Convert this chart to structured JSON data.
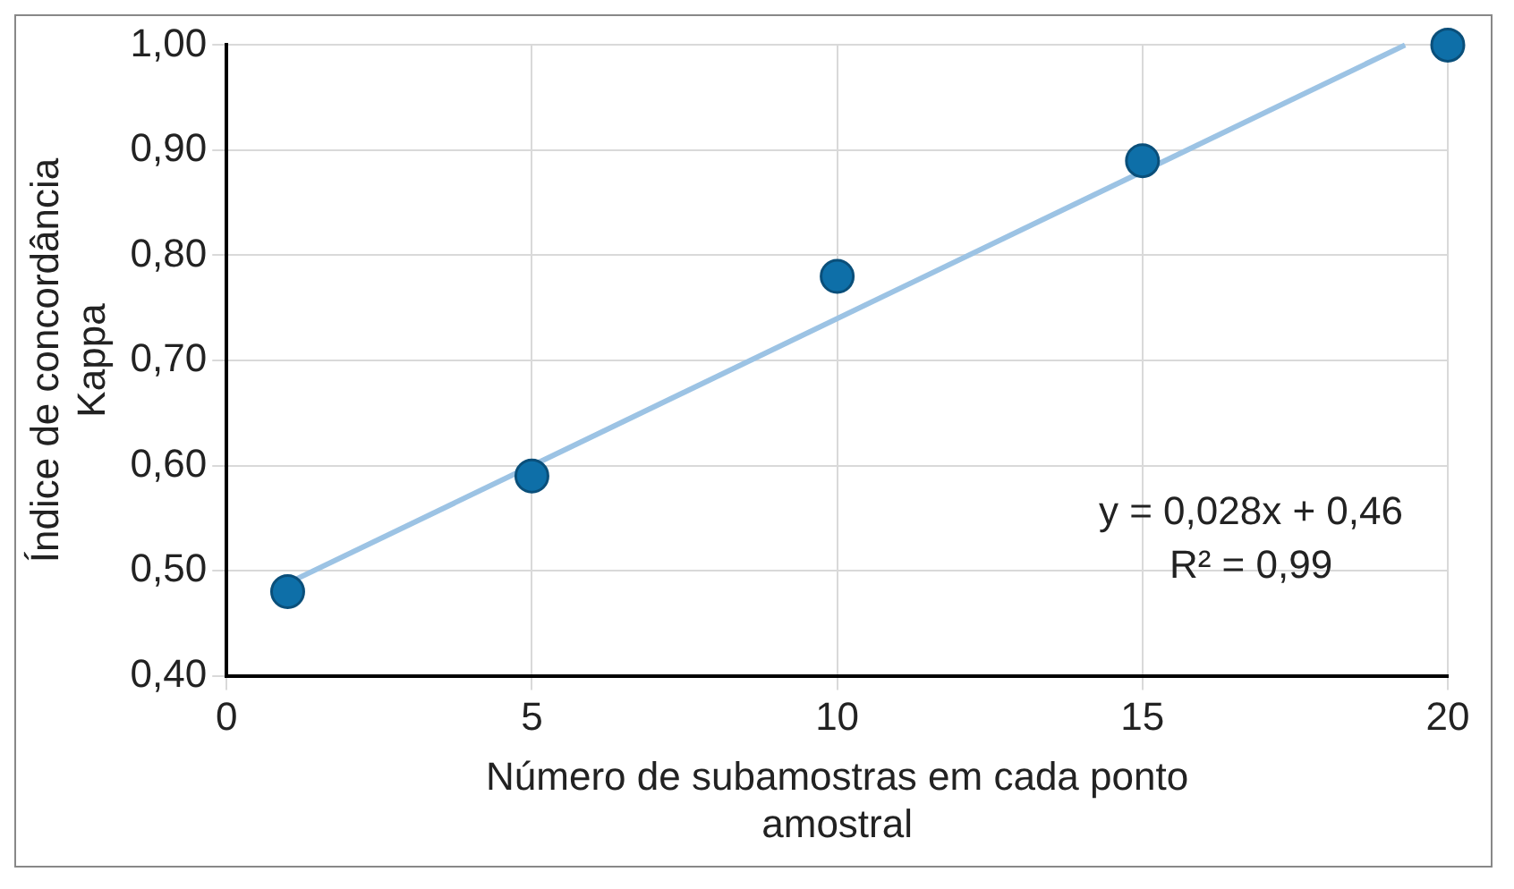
{
  "chart_data": {
    "type": "scatter",
    "xlabel": "Número de subamostras em cada ponto\namostral",
    "ylabel": "Índice de concordância\nKappa",
    "x": [
      1,
      5,
      10,
      15,
      20
    ],
    "series": [
      {
        "type": "scatter",
        "color": "#0e6fa8",
        "values": [
          0.48,
          0.59,
          0.78,
          0.89,
          1.0
        ],
        "marker": "circle"
      },
      {
        "type": "line",
        "color": "#9cc3e4",
        "x": [
          1,
          19.3
        ],
        "values": [
          0.488,
          1.0
        ],
        "marker": "none"
      }
    ],
    "xlim": [
      0,
      20
    ],
    "xticks": [
      0,
      5,
      10,
      15,
      20
    ],
    "ylim": [
      0.4,
      1.0
    ],
    "yticks": [
      {
        "value": 0.4,
        "label": "0,40"
      },
      {
        "value": 0.5,
        "label": "0,50"
      },
      {
        "value": 0.6,
        "label": "0,60"
      },
      {
        "value": 0.7,
        "label": "0,70"
      },
      {
        "value": 0.8,
        "label": "0,80"
      },
      {
        "value": 0.9,
        "label": "0,90"
      },
      {
        "value": 1.0,
        "label": "1,00"
      }
    ],
    "grid": true,
    "legend": false,
    "annotations": [
      "y = 0,028x + 0,46",
      "R² = 0,99"
    ]
  }
}
